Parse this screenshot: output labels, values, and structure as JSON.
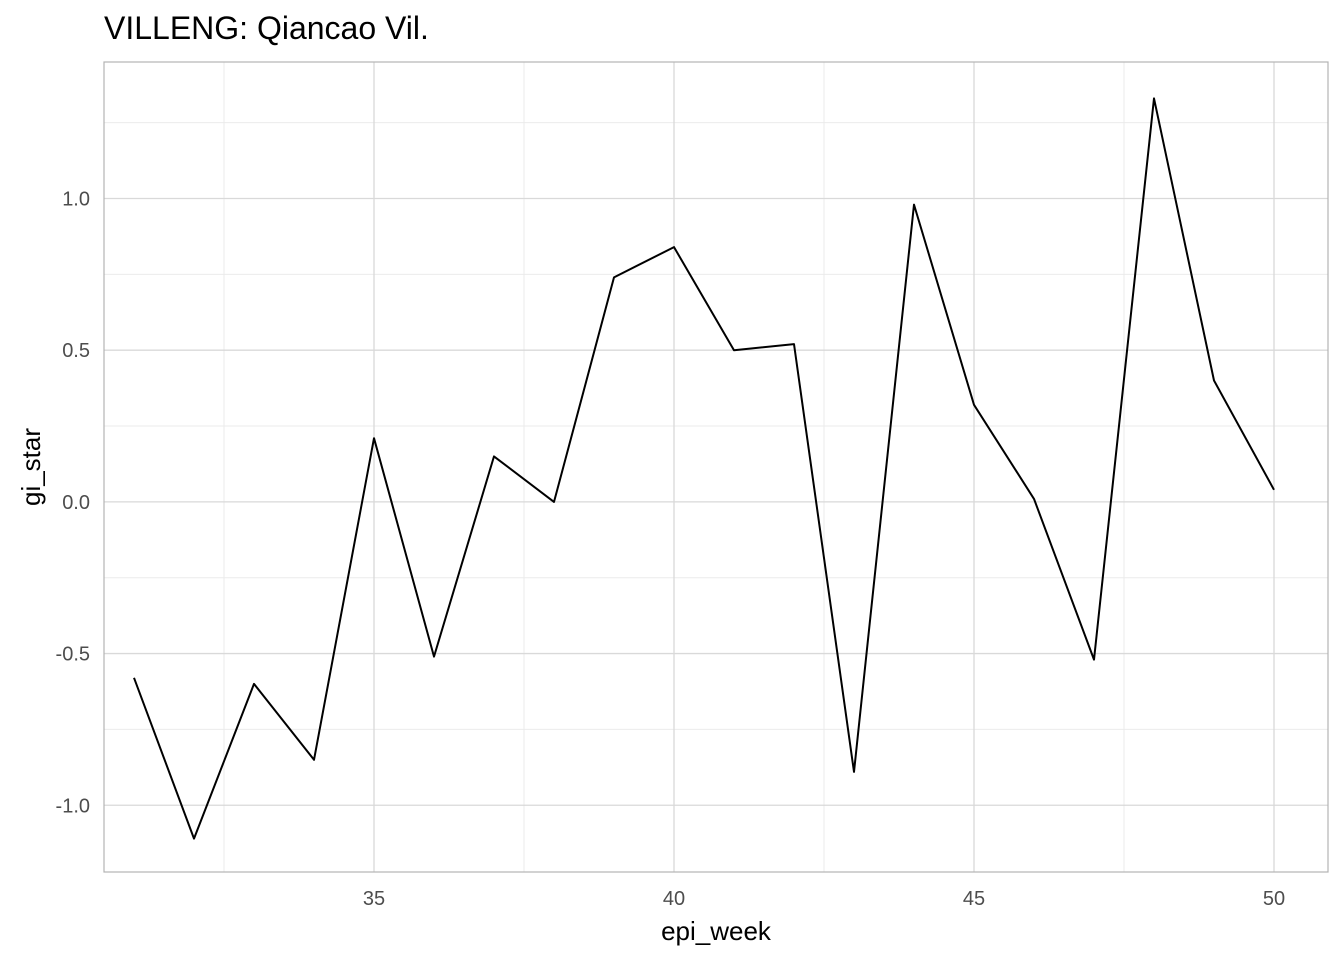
{
  "chart_data": {
    "type": "line",
    "title": "VILLENG: Qiancao Vil.",
    "xlabel": "epi_week",
    "ylabel": "gi_star",
    "xlim": [
      30.5,
      50.9
    ],
    "ylim": [
      -1.22,
      1.45
    ],
    "x_ticks": [
      35,
      40,
      45,
      50
    ],
    "x_tick_labels": [
      "35",
      "40",
      "45",
      "50"
    ],
    "y_ticks": [
      -1.0,
      -0.5,
      0.0,
      0.5,
      1.0
    ],
    "y_tick_labels": [
      "-1.0",
      "-0.5",
      "0.0",
      "0.5",
      "1.0"
    ],
    "grid": true,
    "line_color": "#000000",
    "series": [
      {
        "x": [
          31,
          32,
          33,
          34,
          35,
          36,
          37,
          38,
          39,
          40,
          41,
          42,
          43,
          44,
          45,
          46,
          47,
          48,
          49,
          50
        ],
        "values": [
          -0.58,
          -1.11,
          -0.6,
          -0.85,
          0.21,
          -0.51,
          0.15,
          0.0,
          0.74,
          0.84,
          0.5,
          0.52,
          -0.89,
          0.98,
          0.32,
          0.01,
          -0.52,
          1.33,
          0.4,
          0.04
        ]
      }
    ]
  }
}
